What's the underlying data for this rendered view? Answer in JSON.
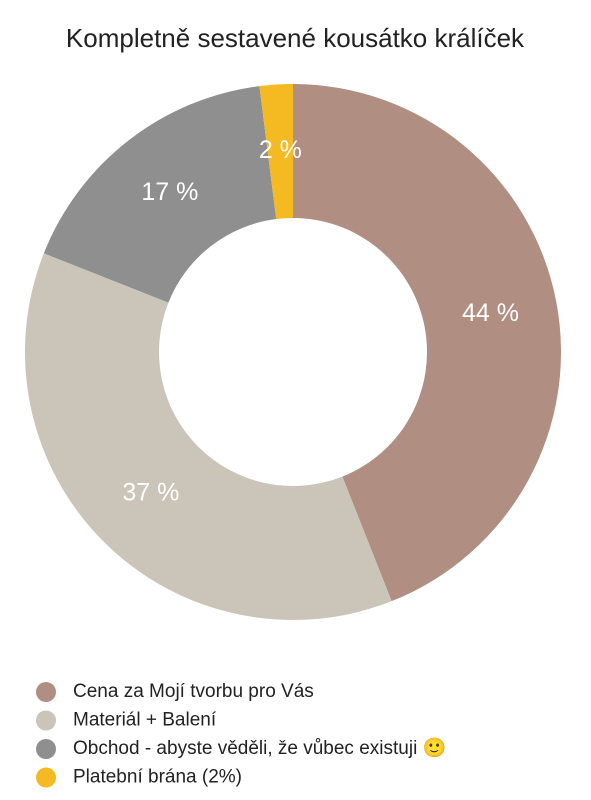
{
  "chart_data": {
    "type": "donut",
    "title": "Kompletně sestavené kousátko králíček",
    "categories": [
      "Cena za Mojí tvorbu pro Vás",
      "Materiál + Balení",
      "Obchod - abyste věděli, že vůbec existuji 🙂",
      "Platební brána (2%)"
    ],
    "values": [
      44,
      37,
      17,
      2
    ],
    "value_labels": [
      "44 %",
      "37 %",
      "17 %",
      "2 %"
    ],
    "colors": [
      "#b08e82",
      "#cbc4b8",
      "#8f8f8f",
      "#f5b921"
    ],
    "legend": "bottom"
  }
}
